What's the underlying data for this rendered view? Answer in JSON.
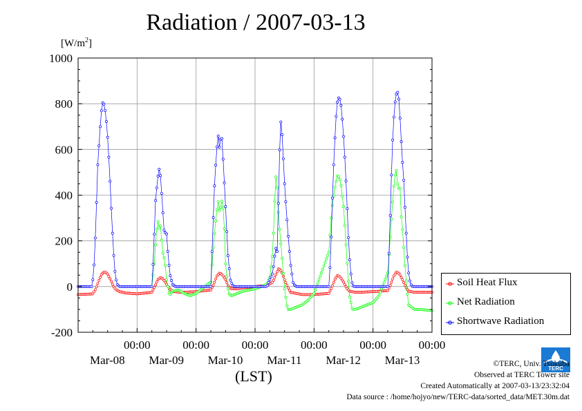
{
  "chart_data": {
    "type": "line",
    "title": "Radiation / 2007-03-13",
    "ylabel": "[W/m2]",
    "ylabel_text": "[W/m",
    "ylabel_sup": "2",
    "ylabel_close": "]",
    "xlabel": "(LST)",
    "ylim": [
      -200,
      1000
    ],
    "xlim_days": [
      0,
      6
    ],
    "y_ticks": [
      1000,
      800,
      600,
      400,
      200,
      0,
      -200
    ],
    "x_ticks": [
      {
        "time": "00:00",
        "date": "Mar-08"
      },
      {
        "time": "00:00",
        "date": "Mar-09"
      },
      {
        "time": "00:00",
        "date": "Mar-10"
      },
      {
        "time": "00:00",
        "date": "Mar-11"
      },
      {
        "time": "00:00",
        "date": "Mar-12"
      },
      {
        "time": "00:00",
        "date": "Mar-13"
      }
    ],
    "grid": true,
    "legend_position": "right-bottom outside",
    "series": [
      {
        "name": "Soil Heat Flux",
        "color": "#ff0000",
        "x": [
          0.0,
          0.25,
          0.3,
          0.35,
          0.4,
          0.45,
          0.5,
          0.55,
          0.6,
          0.65,
          0.7,
          0.8,
          1.0,
          1.25,
          1.3,
          1.35,
          1.4,
          1.45,
          1.5,
          1.55,
          1.6,
          1.7,
          1.8,
          2.0,
          2.25,
          2.3,
          2.35,
          2.4,
          2.45,
          2.5,
          2.55,
          2.6,
          2.7,
          2.8,
          3.0,
          3.2,
          3.3,
          3.35,
          3.4,
          3.45,
          3.5,
          3.55,
          3.6,
          3.7,
          3.8,
          4.0,
          4.25,
          4.3,
          4.35,
          4.4,
          4.45,
          4.5,
          4.55,
          4.6,
          4.7,
          4.8,
          5.0,
          5.25,
          5.3,
          5.35,
          5.4,
          5.45,
          5.5,
          5.55,
          5.6,
          5.7,
          5.8,
          6.0
        ],
        "y": [
          -35,
          -32,
          -10,
          25,
          55,
          65,
          55,
          30,
          0,
          -15,
          -22,
          -28,
          -32,
          -25,
          0,
          30,
          40,
          30,
          10,
          -10,
          -20,
          -25,
          -25,
          -22,
          -15,
          10,
          45,
          60,
          50,
          30,
          0,
          -10,
          -10,
          -5,
          0,
          5,
          20,
          50,
          80,
          65,
          30,
          0,
          -25,
          -30,
          -35,
          -35,
          -30,
          -5,
          30,
          50,
          40,
          20,
          -5,
          -20,
          -25,
          -25,
          -22,
          -18,
          10,
          45,
          65,
          55,
          30,
          0,
          -20,
          -25,
          -25,
          -25
        ]
      },
      {
        "name": "Net Radiation",
        "color": "#00ff00",
        "x": [
          1.25,
          1.3,
          1.32,
          1.35,
          1.38,
          1.4,
          1.43,
          1.45,
          1.48,
          1.5,
          1.55,
          1.6,
          1.7,
          1.8,
          1.9,
          2.0,
          2.25,
          2.3,
          2.35,
          2.38,
          2.4,
          2.43,
          2.45,
          2.48,
          2.5,
          2.55,
          2.6,
          2.7,
          2.8,
          2.9,
          3.0,
          3.1,
          3.2,
          3.25,
          3.3,
          3.33,
          3.35,
          3.38,
          3.4,
          3.45,
          3.5,
          3.55,
          3.6,
          3.7,
          3.8,
          3.9,
          4.0,
          4.25,
          4.3,
          4.35,
          4.4,
          4.45,
          4.5,
          4.55,
          4.6,
          4.65,
          4.7,
          4.8,
          4.9,
          5.0,
          5.1,
          5.25,
          5.3,
          5.35,
          5.38,
          5.4,
          5.43,
          5.45,
          5.48,
          5.5,
          5.55,
          5.6,
          5.65,
          5.7,
          5.8,
          6.0
        ],
        "y": [
          0,
          120,
          220,
          290,
          250,
          270,
          150,
          140,
          90,
          30,
          -40,
          -20,
          -15,
          -30,
          -40,
          -30,
          20,
          200,
          330,
          380,
          320,
          370,
          380,
          250,
          100,
          -30,
          -40,
          -30,
          -20,
          -15,
          -10,
          0,
          10,
          40,
          150,
          350,
          490,
          420,
          300,
          150,
          -10,
          -100,
          -100,
          -90,
          -80,
          -60,
          -30,
          150,
          330,
          430,
          490,
          460,
          350,
          150,
          -40,
          -100,
          -100,
          -90,
          -80,
          -70,
          -40,
          60,
          250,
          430,
          500,
          510,
          400,
          480,
          300,
          250,
          60,
          -80,
          -90,
          -100,
          -100,
          -105
        ]
      },
      {
        "name": "Shortwave Radiation",
        "color": "#0000ff",
        "x": [
          0.0,
          0.24,
          0.27,
          0.3,
          0.33,
          0.36,
          0.39,
          0.42,
          0.45,
          0.48,
          0.51,
          0.54,
          0.57,
          0.6,
          0.63,
          0.66,
          0.7,
          0.8,
          1.0,
          1.25,
          1.28,
          1.31,
          1.34,
          1.37,
          1.4,
          1.43,
          1.46,
          1.5,
          1.53,
          1.56,
          1.6,
          1.65,
          1.7,
          2.0,
          2.25,
          2.28,
          2.31,
          2.34,
          2.37,
          2.4,
          2.43,
          2.46,
          2.5,
          2.54,
          2.58,
          2.62,
          2.65,
          2.7,
          3.0,
          3.2,
          3.3,
          3.35,
          3.38,
          3.4,
          3.43,
          3.46,
          3.5,
          3.55,
          3.6,
          3.65,
          3.7,
          4.0,
          4.25,
          4.28,
          4.31,
          4.34,
          4.37,
          4.4,
          4.43,
          4.46,
          4.49,
          4.52,
          4.55,
          4.58,
          4.61,
          4.64,
          4.67,
          4.7,
          5.0,
          5.25,
          5.28,
          5.31,
          5.34,
          5.37,
          5.4,
          5.43,
          5.46,
          5.49,
          5.52,
          5.55,
          5.58,
          5.61,
          5.64,
          5.67,
          5.7,
          6.0
        ],
        "y": [
          0,
          0,
          90,
          260,
          520,
          640,
          760,
          810,
          790,
          720,
          620,
          470,
          300,
          150,
          50,
          10,
          0,
          0,
          0,
          0,
          140,
          370,
          450,
          520,
          480,
          350,
          240,
          230,
          120,
          50,
          10,
          0,
          0,
          0,
          0,
          220,
          430,
          560,
          670,
          600,
          680,
          550,
          350,
          140,
          30,
          5,
          0,
          0,
          0,
          0,
          60,
          170,
          150,
          420,
          740,
          660,
          450,
          260,
          100,
          10,
          0,
          0,
          0,
          120,
          370,
          580,
          730,
          820,
          830,
          790,
          700,
          570,
          420,
          230,
          90,
          20,
          0,
          0,
          0,
          0,
          210,
          470,
          690,
          800,
          850,
          850,
          730,
          580,
          470,
          300,
          140,
          40,
          10,
          0,
          0,
          0
        ]
      }
    ]
  },
  "credits": {
    "copyright": "©TERC, Univ. Tsukuba",
    "observed": "Observed at TERC Tower site",
    "created": "Created Automatically at 2007-03-13/23:32:04",
    "source": "Data source : /home/hojyo/new/TERC-data/sorted_data/MET.30m.dat"
  },
  "logo_text": "TERC"
}
